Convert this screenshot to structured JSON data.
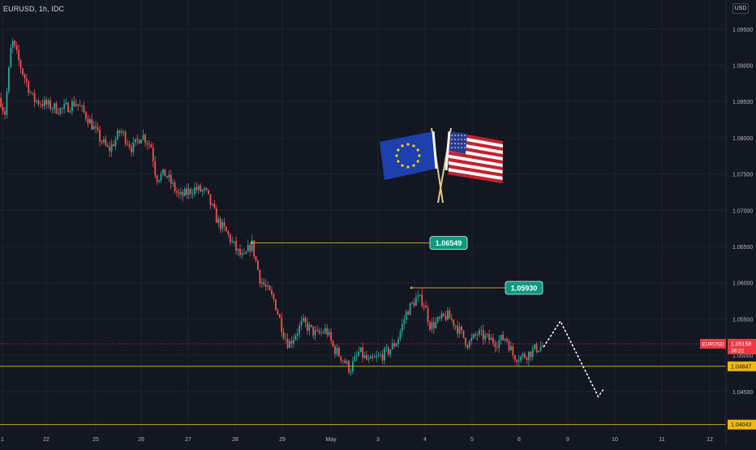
{
  "header": {
    "symbol_label": "EURUSD, 1h, IDC",
    "currency_label": "USD"
  },
  "colors": {
    "background": "#131722",
    "grid": "#1f2230",
    "up": "#26a69a",
    "down": "#ef5350",
    "level_line": "#c9a22b",
    "callout": "#089981",
    "axis_text": "#b2b5be",
    "price_tag": "#f23645",
    "level_tag": "#f0b90b"
  },
  "chart_data": {
    "type": "candlestick",
    "symbol": "EURUSD",
    "timeframe": "1h",
    "source": "IDC",
    "x_ticks": [
      "1",
      "22",
      "25",
      "26",
      "27",
      "28",
      "29",
      "May",
      "3",
      "4",
      "5",
      "6",
      "9",
      "10",
      "11",
      "12"
    ],
    "y_ticks": [
      "1.09500",
      "1.09000",
      "1.08500",
      "1.08000",
      "1.07500",
      "1.07000",
      "1.06500",
      "1.06000",
      "1.05500",
      "1.05000",
      "1.04500"
    ],
    "ylim": [
      1.0395,
      1.099
    ],
    "price_path": [
      [
        0.0,
        1.0855
      ],
      [
        0.1,
        1.0832
      ],
      [
        0.25,
        1.0935
      ],
      [
        0.45,
        1.0895
      ],
      [
        0.7,
        1.0853
      ],
      [
        1.0,
        1.0845
      ],
      [
        1.3,
        1.0838
      ],
      [
        1.6,
        1.0849
      ],
      [
        1.85,
        1.0828
      ],
      [
        2.1,
        1.08
      ],
      [
        2.3,
        1.0782
      ],
      [
        2.55,
        1.081
      ],
      [
        2.8,
        1.0785
      ],
      [
        3.0,
        1.0805
      ],
      [
        3.2,
        1.0788
      ],
      [
        3.3,
        1.0745
      ],
      [
        3.5,
        1.075
      ],
      [
        3.8,
        1.0718
      ],
      [
        4.1,
        1.073
      ],
      [
        4.35,
        1.0725
      ],
      [
        4.6,
        1.0685
      ],
      [
        4.8,
        1.0668
      ],
      [
        5.0,
        1.0645
      ],
      [
        5.15,
        1.0632
      ],
      [
        5.32,
        1.0655
      ],
      [
        5.5,
        1.0605
      ],
      [
        5.8,
        1.0575
      ],
      [
        6.0,
        1.053
      ],
      [
        6.1,
        1.0515
      ],
      [
        6.4,
        1.0545
      ],
      [
        6.7,
        1.0528
      ],
      [
        6.9,
        1.0535
      ],
      [
        7.05,
        1.051
      ],
      [
        7.25,
        1.0495
      ],
      [
        7.4,
        1.048
      ],
      [
        7.6,
        1.0505
      ],
      [
        7.8,
        1.049
      ],
      [
        8.0,
        1.0497
      ],
      [
        8.2,
        1.0505
      ],
      [
        8.4,
        1.052
      ],
      [
        8.6,
        1.056
      ],
      [
        8.8,
        1.0578
      ],
      [
        8.95,
        1.0575
      ],
      [
        9.1,
        1.054
      ],
      [
        9.3,
        1.0548
      ],
      [
        9.45,
        1.0555
      ],
      [
        9.6,
        1.0545
      ],
      [
        9.75,
        1.053
      ],
      [
        9.9,
        1.0515
      ],
      [
        10.1,
        1.053
      ],
      [
        10.3,
        1.0523
      ],
      [
        10.5,
        1.0518
      ],
      [
        10.7,
        1.0525
      ],
      [
        10.85,
        1.05
      ],
      [
        11.0,
        1.0497
      ],
      [
        11.2,
        1.0503
      ],
      [
        11.35,
        1.051
      ],
      [
        11.5,
        1.0513
      ]
    ],
    "levels": [
      {
        "label": "1.06549",
        "price": 1.06549,
        "start_day": 5.32
      },
      {
        "label": "1.05930",
        "price": 1.0593,
        "start_day": 8.7
      }
    ],
    "support_lines": [
      {
        "label": "1.04847",
        "price": 1.04847
      },
      {
        "label": "1.04043",
        "price": 1.04043
      }
    ],
    "current_price": {
      "symbol_tag": "EURUSD",
      "label": "1.05158",
      "countdown": "38:22",
      "price": 1.05158
    },
    "projection": [
      [
        11.5,
        1.0512
      ],
      [
        11.85,
        1.0547
      ],
      [
        12.65,
        1.0443
      ],
      [
        12.75,
        1.0452
      ]
    ],
    "flags": [
      "eu-flag",
      "us-flag"
    ]
  }
}
